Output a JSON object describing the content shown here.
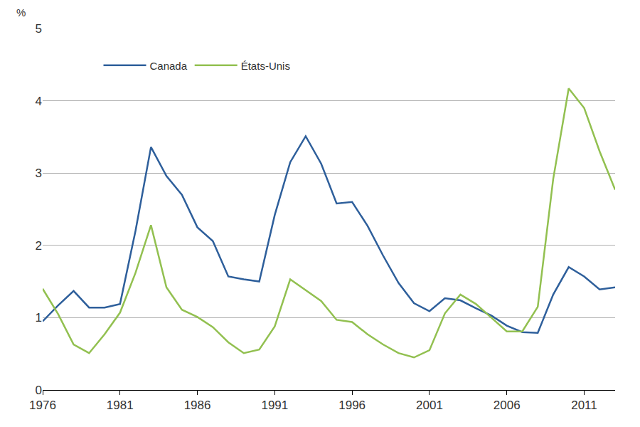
{
  "chart_data": {
    "type": "line",
    "y_label": "%",
    "x": [
      1976,
      1977,
      1978,
      1979,
      1980,
      1981,
      1982,
      1983,
      1984,
      1985,
      1986,
      1987,
      1988,
      1989,
      1990,
      1991,
      1992,
      1993,
      1994,
      1995,
      1996,
      1997,
      1998,
      1999,
      2000,
      2001,
      2002,
      2003,
      2004,
      2005,
      2006,
      2007,
      2008,
      2009,
      2010,
      2011,
      2012,
      2013
    ],
    "series": [
      {
        "name": "Canada",
        "color": "#2e5f9b",
        "values": [
          0.95,
          1.17,
          1.37,
          1.14,
          1.14,
          1.19,
          2.2,
          3.36,
          2.96,
          2.7,
          2.25,
          2.06,
          1.57,
          1.53,
          1.5,
          2.42,
          3.15,
          3.51,
          3.13,
          2.58,
          2.6,
          2.27,
          1.86,
          1.48,
          1.2,
          1.09,
          1.27,
          1.24,
          1.13,
          1.03,
          0.89,
          0.8,
          0.79,
          1.32,
          1.7,
          1.57,
          1.39,
          1.42
        ]
      },
      {
        "name": "États-Unis",
        "color": "#92c050",
        "values": [
          1.4,
          1.05,
          0.63,
          0.51,
          0.77,
          1.07,
          1.62,
          2.28,
          1.42,
          1.11,
          1.01,
          0.87,
          0.66,
          0.51,
          0.56,
          0.88,
          1.53,
          1.38,
          1.23,
          0.97,
          0.94,
          0.77,
          0.63,
          0.51,
          0.45,
          0.55,
          1.06,
          1.32,
          1.19,
          1.0,
          0.81,
          0.81,
          1.15,
          2.92,
          4.17,
          3.9,
          3.3,
          2.77
        ]
      }
    ],
    "xlim": [
      1976,
      2013
    ],
    "xticks": [
      1976,
      1981,
      1986,
      1991,
      1996,
      2001,
      2006,
      2011
    ],
    "ylim": [
      0,
      5
    ],
    "yticks": [
      0,
      1,
      2,
      3,
      4,
      5
    ],
    "grid": true,
    "legend": "top left"
  }
}
